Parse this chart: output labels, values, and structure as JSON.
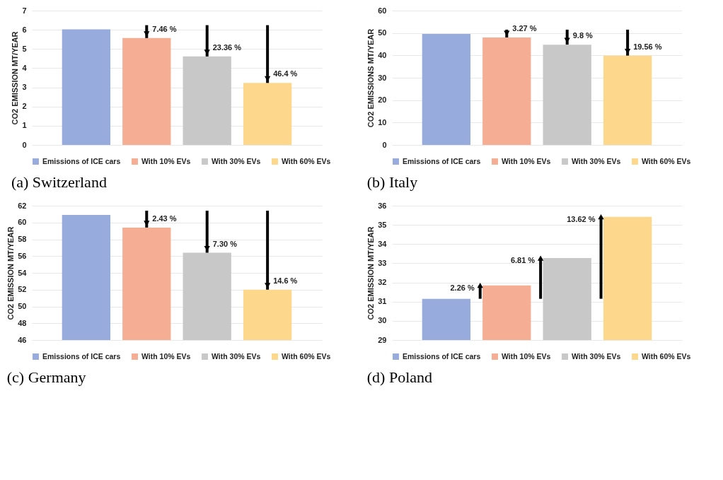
{
  "chart_data": [
    {
      "type": "bar",
      "title": "(a) Switzerland",
      "ylabel": "CO2 EMISSION MT/YEAR",
      "categories": [
        null
      ],
      "series": [
        {
          "name": "Emissions of ICE cars",
          "color": "#97abdc",
          "values": [
            6.02
          ]
        },
        {
          "name": "With 10% EVs",
          "color": "#f5ae93",
          "values": [
            5.57
          ]
        },
        {
          "name": "With 30% EVs",
          "color": "#c8c8c8",
          "values": [
            4.61
          ]
        },
        {
          "name": "With 60% EVs",
          "color": "#fdd88c",
          "values": [
            3.23
          ]
        }
      ],
      "ylim": [
        0,
        7
      ],
      "yticks": [
        0,
        1,
        2,
        3,
        4,
        5,
        6,
        7
      ],
      "grid": "y",
      "legend": "bottom",
      "tick_labels": "y",
      "annotations": [
        {
          "text": "7.46 %",
          "y": 5.57
        },
        {
          "text": "23.36 %",
          "y": 4.61
        },
        {
          "text": "46.4 %",
          "y": 3.23
        }
      ]
    },
    {
      "type": "bar",
      "title": "(b) Italy",
      "ylabel": "CO2 EMISSIONS MT/YEAR",
      "categories": [
        null
      ],
      "series": [
        {
          "name": "Emissions of ICE cars",
          "color": "#97abdc",
          "values": [
            49.6
          ]
        },
        {
          "name": "With 10% EVs",
          "color": "#f5ae93",
          "values": [
            48.0
          ]
        },
        {
          "name": "With 30% EVs",
          "color": "#c8c8c8",
          "values": [
            44.8
          ]
        },
        {
          "name": "With 60% EVs",
          "color": "#fdd88c",
          "values": [
            39.9
          ]
        }
      ],
      "ylim": [
        0,
        60
      ],
      "yticks": [
        0,
        10,
        20,
        30,
        40,
        50,
        60
      ],
      "grid": "y",
      "legend": "bottom",
      "tick_labels": "y",
      "annotations": [
        {
          "text": "3.27 %",
          "y": 48.0
        },
        {
          "text": "9.8 %",
          "y": 44.8
        },
        {
          "text": "19.56 %",
          "y": 39.9
        }
      ]
    },
    {
      "type": "bar",
      "title": "(c) Germany",
      "ylabel": "CO2 EMISSION MT/YEAR",
      "categories": [
        null
      ],
      "series": [
        {
          "name": "Emissions of ICE cars",
          "color": "#97abdc",
          "values": [
            60.9
          ]
        },
        {
          "name": "With 10% EVs",
          "color": "#f5ae93",
          "values": [
            59.4
          ]
        },
        {
          "name": "With 30% EVs",
          "color": "#c8c8c8",
          "values": [
            56.4
          ]
        },
        {
          "name": "With 60% EVs",
          "color": "#fdd88c",
          "values": [
            52.0
          ]
        }
      ],
      "ylim": [
        46,
        62
      ],
      "yticks": [
        46,
        48,
        50,
        52,
        54,
        56,
        58,
        60,
        62
      ],
      "grid": "y",
      "legend": "bottom",
      "tick_labels": "y",
      "annotations": [
        {
          "text": "2.43 %",
          "y": 59.4
        },
        {
          "text": "7.30 %",
          "y": 56.4
        },
        {
          "text": "14.6 %",
          "y": 52.0
        }
      ]
    },
    {
      "type": "bar",
      "title": "(d) Poland",
      "ylabel": "CO2 EMISSION MT/YEAR",
      "categories": [
        null
      ],
      "series": [
        {
          "name": "Emissions of ICE cars",
          "color": "#97abdc",
          "values": [
            31.15
          ]
        },
        {
          "name": "With 10% EVs",
          "color": "#f5ae93",
          "values": [
            31.85
          ]
        },
        {
          "name": "With 30% EVs",
          "color": "#c8c8c8",
          "values": [
            33.27
          ]
        },
        {
          "name": "With 60% EVs",
          "color": "#fdd88c",
          "values": [
            35.42
          ]
        }
      ],
      "ylim": [
        29,
        36
      ],
      "yticks": [
        29,
        30,
        31,
        32,
        33,
        34,
        35,
        36
      ],
      "grid": "y",
      "legend": "bottom",
      "tick_labels": "y",
      "annotations": [
        "2.26 %",
        "6.81 %",
        "13.62 %"
      ]
    }
  ]
}
